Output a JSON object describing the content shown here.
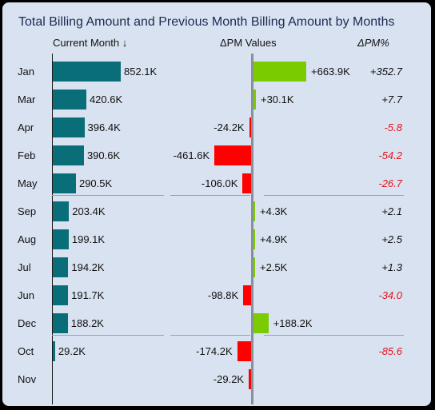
{
  "title": "Total Billing Amount and Previous Month Billing Amount by Months",
  "headers": {
    "current_month": "Current Month ↓",
    "pm_values": "ΔPM Values",
    "pm_percent": "ΔPM%"
  },
  "colors": {
    "current_bar": "#0a6e78",
    "positive": "#7acc00",
    "negative": "#ff0000",
    "pct_positive": "#111111",
    "pct_negative": "#e0141e",
    "background": "#d9e2f0",
    "title": "#1c2a55"
  },
  "chart_data": {
    "type": "bar",
    "title": "Total Billing Amount and Previous Month Billing Amount by Months",
    "categories": [
      "Jan",
      "Mar",
      "Apr",
      "Feb",
      "May",
      "Sep",
      "Aug",
      "Jul",
      "Jun",
      "Dec",
      "Oct",
      "Nov"
    ],
    "series": [
      {
        "name": "Current Month",
        "values": [
          852.1,
          420.6,
          396.4,
          390.6,
          290.5,
          203.4,
          199.1,
          194.2,
          191.7,
          188.2,
          29.2,
          null
        ],
        "labels": [
          "852.1K",
          "420.6K",
          "396.4K",
          "390.6K",
          "290.5K",
          "203.4K",
          "199.1K",
          "194.2K",
          "191.7K",
          "188.2K",
          "29.2K",
          ""
        ]
      },
      {
        "name": "ΔPM Values",
        "values": [
          663.9,
          30.1,
          -24.2,
          -461.6,
          -106.0,
          4.3,
          4.9,
          2.5,
          -98.8,
          188.2,
          -174.2,
          -29.2
        ],
        "labels": [
          "+663.9K",
          "+30.1K",
          "-24.2K",
          "-461.6K",
          "-106.0K",
          "+4.3K",
          "+4.9K",
          "+2.5K",
          "-98.8K",
          "+188.2K",
          "-174.2K",
          "-29.2K"
        ]
      },
      {
        "name": "ΔPM%",
        "values": [
          352.7,
          7.7,
          -5.8,
          -54.2,
          -26.7,
          2.1,
          2.5,
          1.3,
          -34.0,
          null,
          -85.6,
          null
        ],
        "labels": [
          "+352.7",
          "+7.7",
          "-5.8",
          "-54.2",
          "-26.7",
          "+2.1",
          "+2.5",
          "+1.3",
          "-34.0",
          "",
          "-85.6",
          ""
        ]
      }
    ]
  }
}
